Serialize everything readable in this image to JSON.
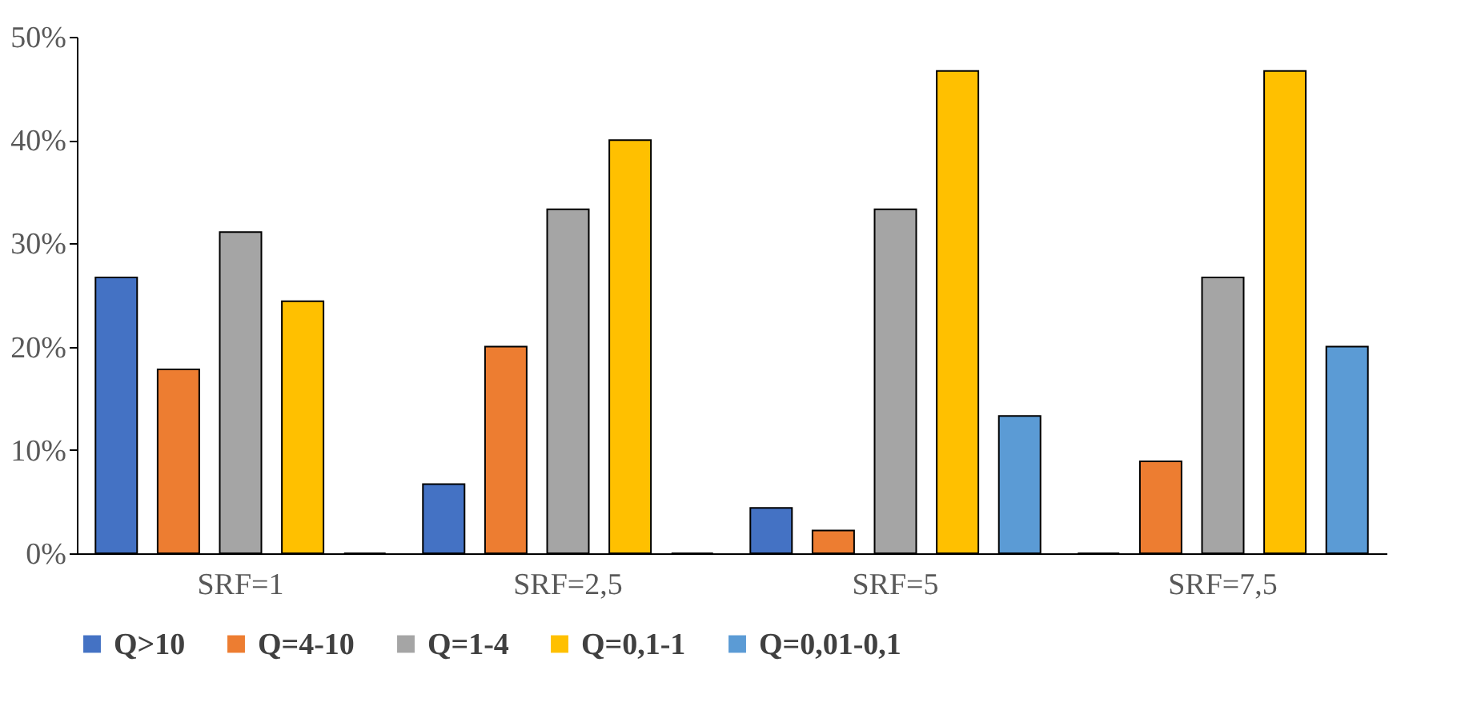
{
  "chart_data": {
    "type": "bar",
    "categories": [
      "SRF=1",
      "SRF=2,5",
      "SRF=5",
      "SRF=7,5"
    ],
    "series": [
      {
        "name": "Q>10",
        "color": "#4472c4",
        "values": [
          26.7,
          6.7,
          4.4,
          0
        ]
      },
      {
        "name": "Q=4-10",
        "color": "#ed7d31",
        "values": [
          17.8,
          20,
          2.2,
          8.9
        ]
      },
      {
        "name": "Q=1-4",
        "color": "#a5a5a5",
        "values": [
          31.1,
          33.3,
          33.3,
          26.7
        ]
      },
      {
        "name": "Q=0,1-1",
        "color": "#ffc000",
        "values": [
          24.4,
          40,
          46.7,
          46.7
        ]
      },
      {
        "name": "Q=0,01-0,1",
        "color": "#5b9bd5",
        "values": [
          0,
          0,
          13.3,
          20
        ]
      }
    ],
    "ylim": [
      0,
      50
    ],
    "yticks": [
      {
        "value": 0,
        "label": "0%"
      },
      {
        "value": 10,
        "label": "10%"
      },
      {
        "value": 20,
        "label": "20%"
      },
      {
        "value": 30,
        "label": "30%"
      },
      {
        "value": 40,
        "label": "40%"
      },
      {
        "value": 50,
        "label": "50%"
      }
    ],
    "grid": false,
    "legend": "bottom"
  }
}
